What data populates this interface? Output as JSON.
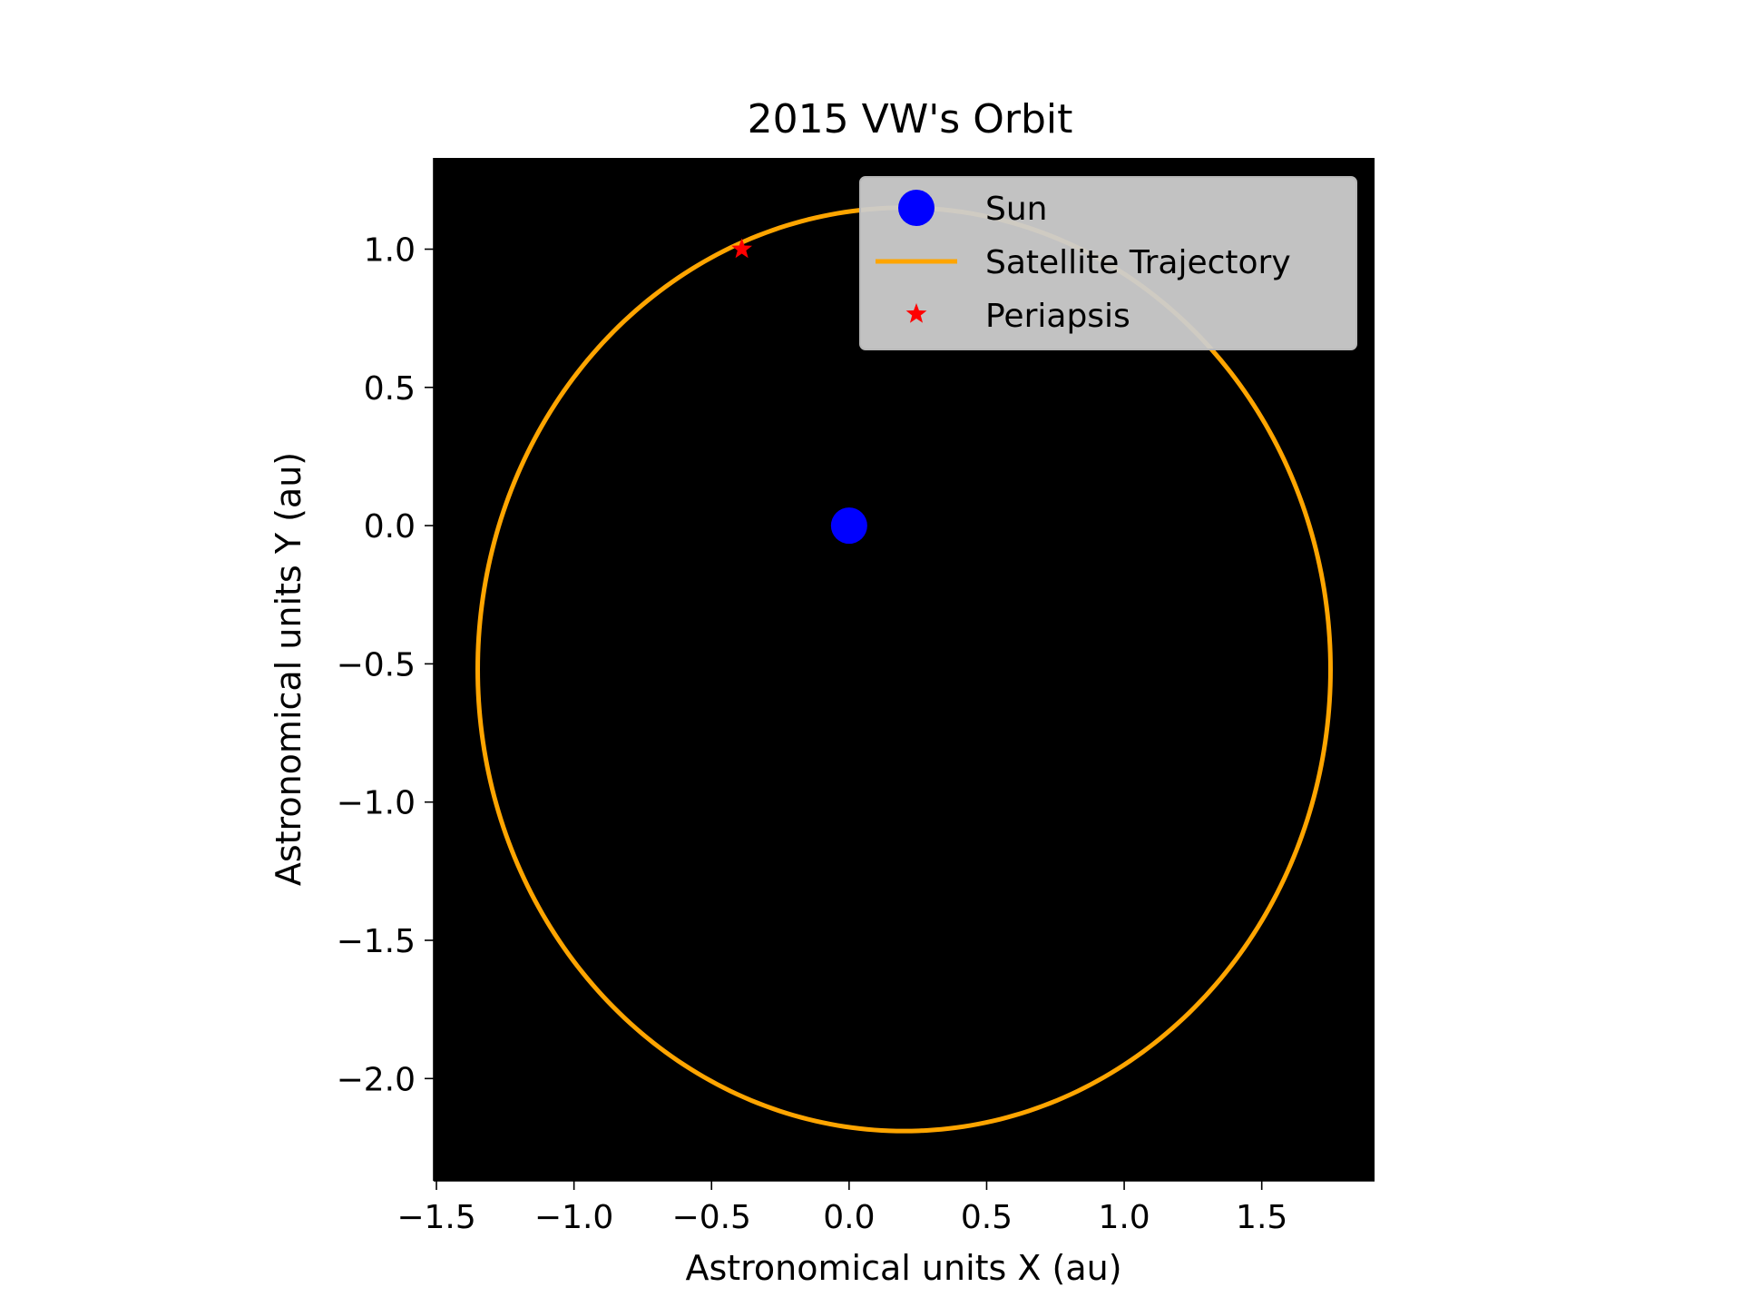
{
  "chart_data": {
    "type": "line",
    "title": "2015 VW's Orbit",
    "xlabel": "Astronomical units X (au)",
    "ylabel": "Astronomical units Y (au)",
    "xlim": [
      -1.51,
      1.91
    ],
    "ylim": [
      -2.37,
      1.33
    ],
    "xticks": [
      -1.5,
      -1.0,
      -0.5,
      0.0,
      0.5,
      1.0,
      1.5
    ],
    "yticks": [
      -2.0,
      -1.5,
      -1.0,
      -0.5,
      0.0,
      0.5,
      1.0
    ],
    "xtick_labels": [
      "−1.5",
      "−1.0",
      "−0.5",
      "0.0",
      "0.5",
      "1.0",
      "1.5"
    ],
    "ytick_labels": [
      "−2.0",
      "−1.5",
      "−1.0",
      "−0.5",
      "0.0",
      "0.5",
      "1.0"
    ],
    "background_color": "#000000",
    "grid": false,
    "aspect": "equal",
    "legend_position": "upper right",
    "series": [
      {
        "name": "Sun",
        "kind": "point",
        "marker": "circle",
        "color": "#0000ff",
        "x": [
          0.0
        ],
        "y": [
          0.0
        ]
      },
      {
        "name": "Satellite Trajectory",
        "kind": "ellipse",
        "color": "#ffa500",
        "center": [
          0.2,
          -0.52
        ],
        "semi_axes": [
          1.55,
          1.67
        ],
        "note_points": {
          "x": [
            -1.35,
            1.75,
            0.12,
            0.3
          ],
          "y": [
            -0.55,
            -0.45,
            -2.19,
            1.15
          ]
        }
      },
      {
        "name": "Periapsis",
        "kind": "point",
        "marker": "star",
        "color": "#ff0000",
        "x": [
          -0.39
        ],
        "y": [
          1.0
        ]
      }
    ],
    "legend": [
      {
        "label": "Sun",
        "marker": "circle",
        "color": "#0000ff"
      },
      {
        "label": "Satellite Trajectory",
        "marker": "line",
        "color": "#ffa500"
      },
      {
        "label": "Periapsis",
        "marker": "star",
        "color": "#ff0000"
      }
    ]
  }
}
